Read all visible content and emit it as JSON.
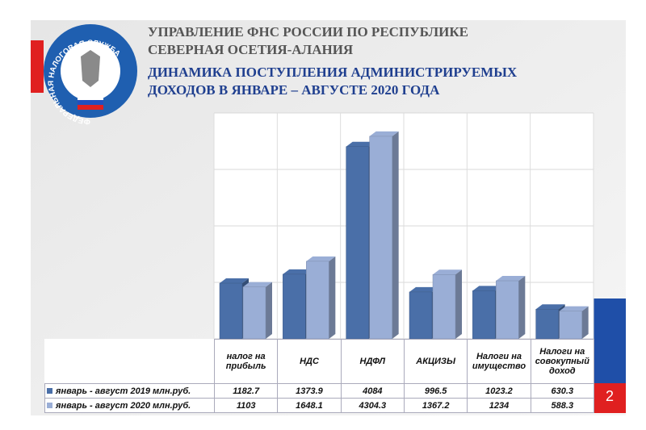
{
  "header": {
    "org": [
      "УПРАВЛЕНИЕ ФНС РОССИИ ПО РЕСПУБЛИКЕ",
      "СЕВЕРНАЯ ОСЕТИЯ-АЛАНИЯ"
    ],
    "logo": "ФЕДЕРАЛЬНАЯ НАЛОГОВАЯ СЛУЖБА",
    "page": "2"
  },
  "chart_data": {
    "type": "bar3d",
    "title": [
      "ДИНАМИКА ПОСТУПЛЕНИЯ АДМИНИСТРИРУЕМЫХ",
      "ДОХОДОВ  В  ЯНВАРЕ – АВГУСТЕ 2020 ГОДА"
    ],
    "categories": [
      "налог на прибыль",
      "НДС",
      "НДФЛ",
      "АКЦИЗЫ",
      "Налоги на имущество",
      "Налоги на совокупный доход"
    ],
    "series": [
      {
        "name": "январь - август 2019 млн.руб.",
        "color": "#4a6fa8",
        "values": [
          1182.7,
          1373.9,
          4084,
          996.5,
          1023.2,
          630.3
        ]
      },
      {
        "name": "январь - август 2020 млн.руб.",
        "color": "#9aaed6",
        "values": [
          1103,
          1648.1,
          4304.3,
          1367.2,
          1234,
          588.3
        ]
      }
    ],
    "ylim": [
      0,
      4800
    ],
    "yticks": [
      0,
      1200,
      2400,
      3600,
      4800
    ],
    "grid": true
  }
}
